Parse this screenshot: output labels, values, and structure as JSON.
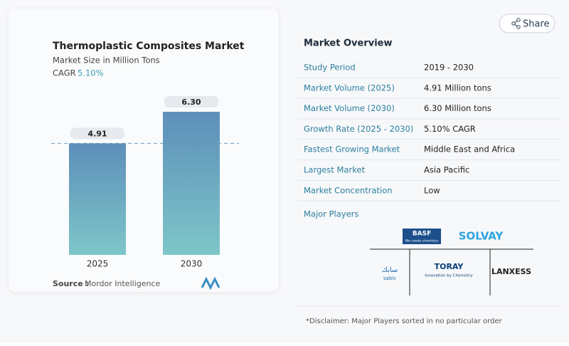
{
  "chart_data": {
    "type": "bar",
    "title": "Thermoplastic Composites Market",
    "subtitle": "Market Size in Million Tons",
    "cagr_label": "CAGR",
    "cagr": "5.10%",
    "categories": [
      "2025",
      "2030"
    ],
    "values": [
      4.91,
      6.3
    ],
    "value_labels": [
      "4.91",
      "6.30"
    ],
    "source_label": "Source :",
    "source": "Mordor Intelligence"
  },
  "share": "Share",
  "overview": {
    "title": "Market Overview",
    "rows": [
      [
        "Study Period",
        "2019 - 2030"
      ],
      [
        "Market Volume (2025)",
        "4.91 Million tons"
      ],
      [
        "Market Volume (2030)",
        "6.30 Million tons"
      ],
      [
        "Growth Rate (2025 - 2030)",
        "5.10% CAGR"
      ],
      [
        "Fastest Growing Market",
        "Middle East and Africa"
      ],
      [
        "Largest Market",
        "Asia Pacific"
      ],
      [
        "Market Concentration",
        "Low"
      ]
    ]
  },
  "players": {
    "title": "Major Players",
    "logos": [
      "BASF",
      "We create chemistry",
      "SOLVAY",
      "سابك",
      "sabic",
      "TORAY",
      "Innovation by Chemistry",
      "LANXESS"
    ]
  },
  "disclaimer": "*Disclaimer: Major Players sorted in no particular order"
}
